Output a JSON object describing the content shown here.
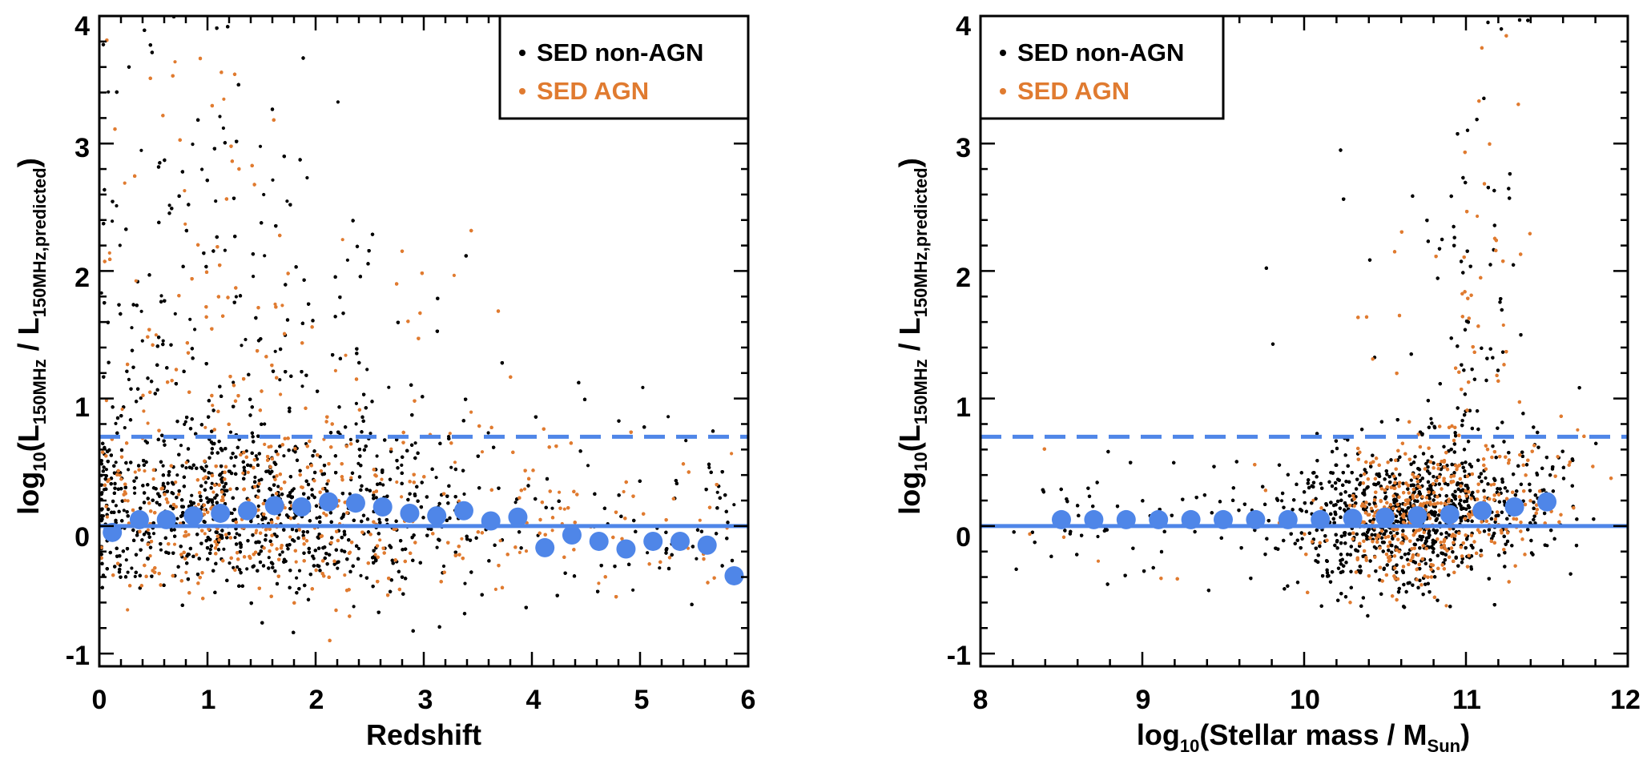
{
  "figure": {
    "legend": {
      "non_agn_label": "SED non-AGN",
      "agn_label": "SED AGN"
    },
    "colors": {
      "non_agn": "#000000",
      "agn": "#e07b30",
      "median": "#4f86e8"
    }
  },
  "chart_data": [
    {
      "type": "scatter",
      "title": "",
      "xlabel": "Redshift",
      "ylabel_parts": {
        "prefix": "log",
        "prefix_sub": "10",
        "open": "(L",
        "num_sub": "150MHz",
        "mid": " / L",
        "den_sub": "150MHz,predicted",
        "close": ")"
      },
      "xlim": [
        0,
        6
      ],
      "ylim": [
        -1.1,
        4
      ],
      "x_ticks": [
        "0",
        "1",
        "2",
        "3",
        "4",
        "5",
        "6"
      ],
      "y_ticks": [
        "-1",
        "0",
        "1",
        "2",
        "3",
        "4"
      ],
      "legend_position": "top-right",
      "reference_lines": {
        "solid": 0,
        "dashed": 0.7
      },
      "median_points": {
        "x": [
          0.12,
          0.37,
          0.62,
          0.87,
          1.12,
          1.37,
          1.62,
          1.87,
          2.12,
          2.37,
          2.62,
          2.87,
          3.12,
          3.37,
          3.62,
          3.87,
          4.12,
          4.37,
          4.62,
          4.87,
          5.12,
          5.37,
          5.62,
          5.87
        ],
        "y": [
          -0.05,
          0.05,
          0.05,
          0.08,
          0.1,
          0.12,
          0.16,
          0.15,
          0.19,
          0.18,
          0.15,
          0.1,
          0.08,
          0.12,
          0.04,
          0.07,
          -0.17,
          -0.07,
          -0.12,
          -0.18,
          -0.12,
          -0.12,
          -0.15,
          -0.39
        ]
      },
      "series": [
        {
          "name": "SED non-AGN",
          "description": "dense cloud concentrated at redshift 0-3, log ratio mostly -0.7 to 1.5 with tail up to 4"
        },
        {
          "name": "SED AGN",
          "description": "orange points concentrated at redshift 0-3.5 around 0-0.5, second clump at redshift 3.5-5 around 0"
        }
      ]
    },
    {
      "type": "scatter",
      "title": "",
      "xlabel_parts": {
        "prefix": "log",
        "prefix_sub": "10",
        "mid": "(Stellar mass / M",
        "sub": "Sun",
        "close": ")"
      },
      "ylabel_parts": {
        "prefix": "log",
        "prefix_sub": "10",
        "open": "(L",
        "num_sub": "150MHz",
        "mid": " / L",
        "den_sub": "150MHz,predicted",
        "close": ")"
      },
      "xlim": [
        8,
        12
      ],
      "ylim": [
        -1.1,
        4
      ],
      "x_ticks": [
        "8",
        "9",
        "10",
        "11",
        "12"
      ],
      "y_ticks": [
        "-1",
        "0",
        "1",
        "2",
        "3",
        "4"
      ],
      "legend_position": "top-left",
      "reference_lines": {
        "solid": 0,
        "dashed": 0.7
      },
      "median_points": {
        "x": [
          8.5,
          8.7,
          8.9,
          9.1,
          9.3,
          9.5,
          9.7,
          9.9,
          10.1,
          10.3,
          10.5,
          10.7,
          10.9,
          11.1,
          11.3,
          11.5
        ],
        "y": [
          0.05,
          0.05,
          0.05,
          0.05,
          0.05,
          0.05,
          0.05,
          0.05,
          0.05,
          0.06,
          0.07,
          0.08,
          0.09,
          0.12,
          0.15,
          0.19
        ]
      },
      "series": [
        {
          "name": "SED non-AGN",
          "description": "points concentrated at stellar mass 9.8-11.6, log ratio -0.6 to 0.8, plume rising to 4 near mass 11.1"
        },
        {
          "name": "SED AGN",
          "description": "orange points concentrated at stellar mass 10.3-11.6 around 0-0.5"
        }
      ]
    }
  ]
}
